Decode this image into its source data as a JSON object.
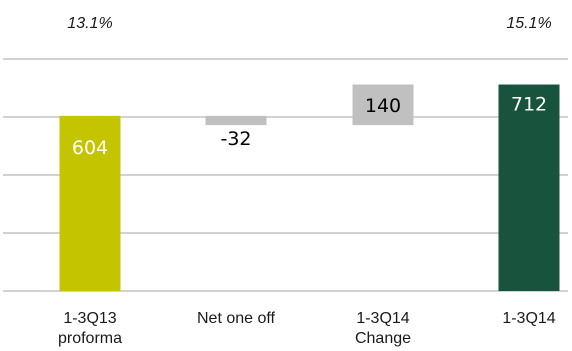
{
  "chart_data": {
    "type": "bar",
    "subtype": "waterfall",
    "grid": true,
    "legend": "none",
    "ylim": [
      0,
      800
    ],
    "categories": [
      [
        "1-3Q13",
        "proforma"
      ],
      [
        "Net one off"
      ],
      [
        "1-3Q14",
        "Change"
      ],
      [
        "1-3Q14"
      ]
    ],
    "bars": [
      {
        "label": "604",
        "base": 0,
        "top": 604,
        "kind": "total",
        "color": "#c4c400",
        "label_color": "#ffffff",
        "label_pos": "inside-lower"
      },
      {
        "label": "-32",
        "base": 572,
        "top": 604,
        "kind": "delta",
        "color": "#c0c0c0",
        "label_color": "#000000",
        "label_pos": "inside-lower"
      },
      {
        "label": "140",
        "base": 572,
        "top": 712,
        "kind": "delta",
        "color": "#c0c0c0",
        "label_color": "#000000",
        "label_pos": "inside-center"
      },
      {
        "label": "712",
        "base": 0,
        "top": 712,
        "kind": "total",
        "color": "#17533d",
        "label_color": "#ffffff",
        "label_pos": "inside-top"
      }
    ],
    "annotations": [
      {
        "text": "13.1%",
        "category_index": 0
      },
      {
        "text": "15.1%",
        "category_index": 3
      }
    ]
  }
}
